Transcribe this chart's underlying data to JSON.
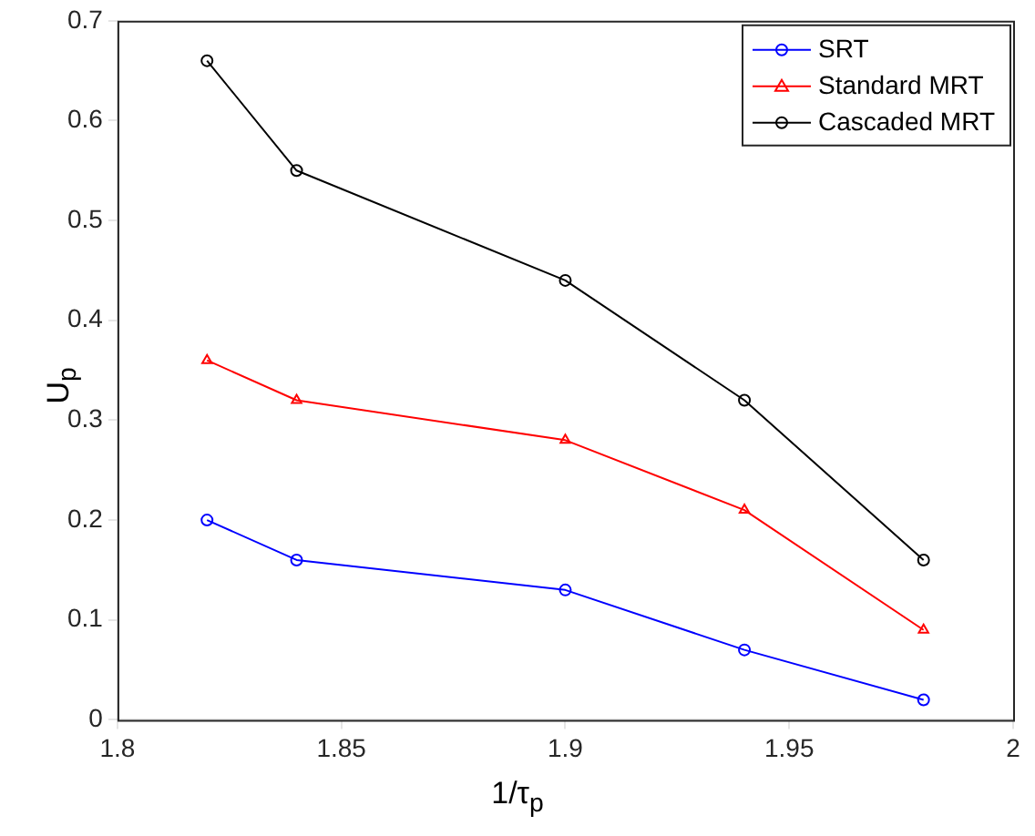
{
  "chart_data": {
    "type": "line",
    "xlabel": "1/τ$_{p}$",
    "ylabel": "U$_{p}$",
    "x": [
      1.82,
      1.84,
      1.9,
      1.94,
      1.98
    ],
    "series": [
      {
        "name": "SRT",
        "color": "#0000ff",
        "marker": "circle",
        "values": [
          0.2,
          0.16,
          0.13,
          0.07,
          0.02
        ]
      },
      {
        "name": "Standard MRT",
        "color": "#ff0000",
        "marker": "triangle",
        "values": [
          0.36,
          0.32,
          0.28,
          0.21,
          0.09
        ]
      },
      {
        "name": "Cascaded MRT",
        "color": "#000000",
        "marker": "circle",
        "values": [
          0.66,
          0.55,
          0.44,
          0.32,
          0.16
        ]
      }
    ],
    "xlim": [
      1.8,
      2
    ],
    "xticks": [
      1.8,
      1.85,
      1.9,
      1.95,
      2
    ],
    "ylim": [
      0,
      0.7
    ],
    "yticks": [
      0,
      0.1,
      0.2,
      0.3,
      0.4,
      0.5,
      0.6,
      0.7
    ],
    "grid": false,
    "legend": "top right"
  }
}
